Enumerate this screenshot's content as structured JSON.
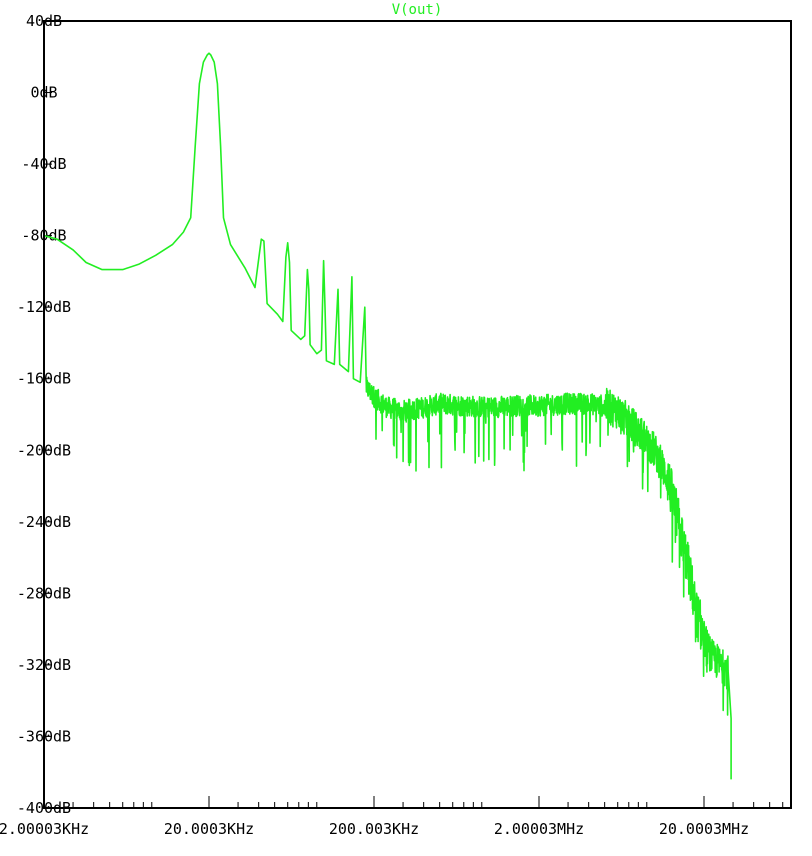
{
  "chart_data": {
    "type": "line",
    "title": "",
    "xlabel": "",
    "ylabel": "",
    "x_scale": "log",
    "x_tick_labels": [
      "2.00003KHz",
      "20.0003KHz",
      "200.003KHz",
      "2.00003MHz",
      "20.0003MHz"
    ],
    "x_tick_values_hz": [
      2000.03,
      20000.3,
      200003,
      2000030,
      20000300
    ],
    "xlim_hz": [
      2000.03,
      30000000
    ],
    "y_tick_labels": [
      "40dB",
      "0dB",
      "-40dB",
      "-80dB",
      "-120dB",
      "-160dB",
      "-200dB",
      "-240dB",
      "-280dB",
      "-320dB",
      "-360dB",
      "-400dB"
    ],
    "y_tick_values_db": [
      40,
      0,
      -40,
      -80,
      -120,
      -160,
      -200,
      -240,
      -280,
      -320,
      -360,
      -400
    ],
    "ylim_db": [
      -400,
      40
    ],
    "grid": false,
    "colors": {
      "trace": "#22ee22",
      "axis": "#000000",
      "label": "#000000",
      "series_label": "#22ee22",
      "background": "#ffffff"
    },
    "series": [
      {
        "name": "V(out)",
        "points": [
          [
            2000,
            -80
          ],
          [
            2400,
            -82
          ],
          [
            3000,
            -88
          ],
          [
            3600,
            -95
          ],
          [
            4500,
            -99
          ],
          [
            6000,
            -99
          ],
          [
            7500,
            -96
          ],
          [
            9500,
            -91
          ],
          [
            12000,
            -85
          ],
          [
            14000,
            -78
          ],
          [
            15500,
            -70
          ],
          [
            16500,
            -30
          ],
          [
            17500,
            5
          ],
          [
            18500,
            17
          ],
          [
            19500,
            21
          ],
          [
            20000,
            22
          ],
          [
            20500,
            21
          ],
          [
            21500,
            17
          ],
          [
            22500,
            5
          ],
          [
            23500,
            -30
          ],
          [
            24500,
            -70
          ],
          [
            27000,
            -85
          ],
          [
            33000,
            -98
          ],
          [
            38000,
            -109
          ],
          [
            40000,
            -93
          ],
          [
            41500,
            -82
          ],
          [
            43000,
            -83
          ],
          [
            45000,
            -118
          ],
          [
            52000,
            -124
          ],
          [
            56000,
            -128
          ],
          [
            58500,
            -92
          ],
          [
            60000,
            -84
          ],
          [
            61500,
            -95
          ],
          [
            63000,
            -133
          ],
          [
            72000,
            -138
          ],
          [
            76000,
            -136
          ],
          [
            79000,
            -99
          ],
          [
            80500,
            -110
          ],
          [
            82000,
            -141
          ],
          [
            90000,
            -146
          ],
          [
            96000,
            -144
          ],
          [
            99000,
            -94
          ],
          [
            101000,
            -120
          ],
          [
            103000,
            -150
          ],
          [
            115000,
            -152
          ],
          [
            121000,
            -110
          ],
          [
            124000,
            -152
          ],
          [
            140000,
            -156
          ],
          [
            147000,
            -103
          ],
          [
            150000,
            -160
          ],
          [
            165000,
            -162
          ],
          [
            176000,
            -120
          ],
          [
            180000,
            -165
          ],
          [
            200000,
            -170
          ],
          [
            240000,
            -176
          ],
          [
            300000,
            -178
          ],
          [
            400000,
            -176
          ],
          [
            500000,
            -174
          ],
          [
            700000,
            -175
          ],
          [
            1000000,
            -176
          ],
          [
            1500000,
            -175
          ],
          [
            2000000,
            -175
          ],
          [
            3000000,
            -174
          ],
          [
            4000000,
            -174
          ],
          [
            5000000,
            -175
          ],
          [
            6000000,
            -178
          ],
          [
            7000000,
            -184
          ],
          [
            8500000,
            -192
          ],
          [
            10000000,
            -200
          ],
          [
            12000000,
            -215
          ],
          [
            14000000,
            -240
          ],
          [
            16000000,
            -265
          ],
          [
            18000000,
            -290
          ],
          [
            20000000,
            -305
          ],
          [
            22000000,
            -315
          ],
          [
            24000000,
            -318
          ],
          [
            27000000,
            -322
          ],
          [
            30000000,
            -330
          ]
        ],
        "noise_band_hz": [
          180000,
          28000000
        ],
        "tail_end_db": [
          -350,
          -375,
          -384
        ]
      }
    ]
  }
}
